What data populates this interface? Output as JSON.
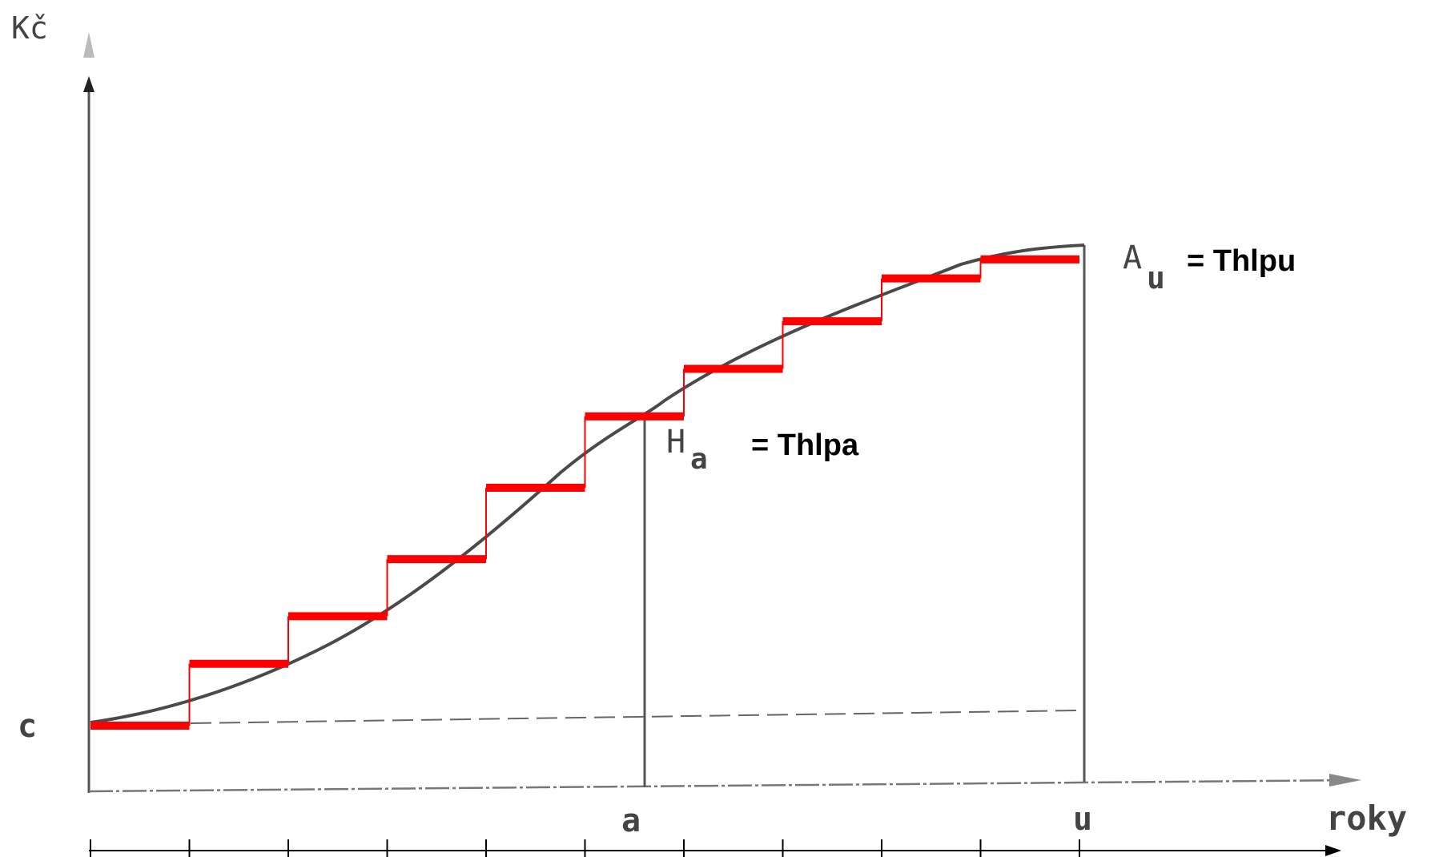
{
  "labels": {
    "y_axis": "Kč",
    "x_axis": "roky",
    "c": "c",
    "a": "a",
    "u": "u",
    "H": "H",
    "H_sub": "a",
    "H_eq": "= Thlpa",
    "A": "A",
    "A_sub": "u",
    "A_eq": "= Thlpu"
  },
  "colors": {
    "curve": "#4a4a4a",
    "steps": "#ff0000",
    "axes": "#555555",
    "timeline": "#000000"
  },
  "model": {
    "c": 0,
    "A_u": 100,
    "H_a": 68,
    "step_levels": [
      0,
      13,
      23,
      35,
      50,
      65,
      75,
      85,
      94,
      98
    ],
    "step_count": 10
  }
}
